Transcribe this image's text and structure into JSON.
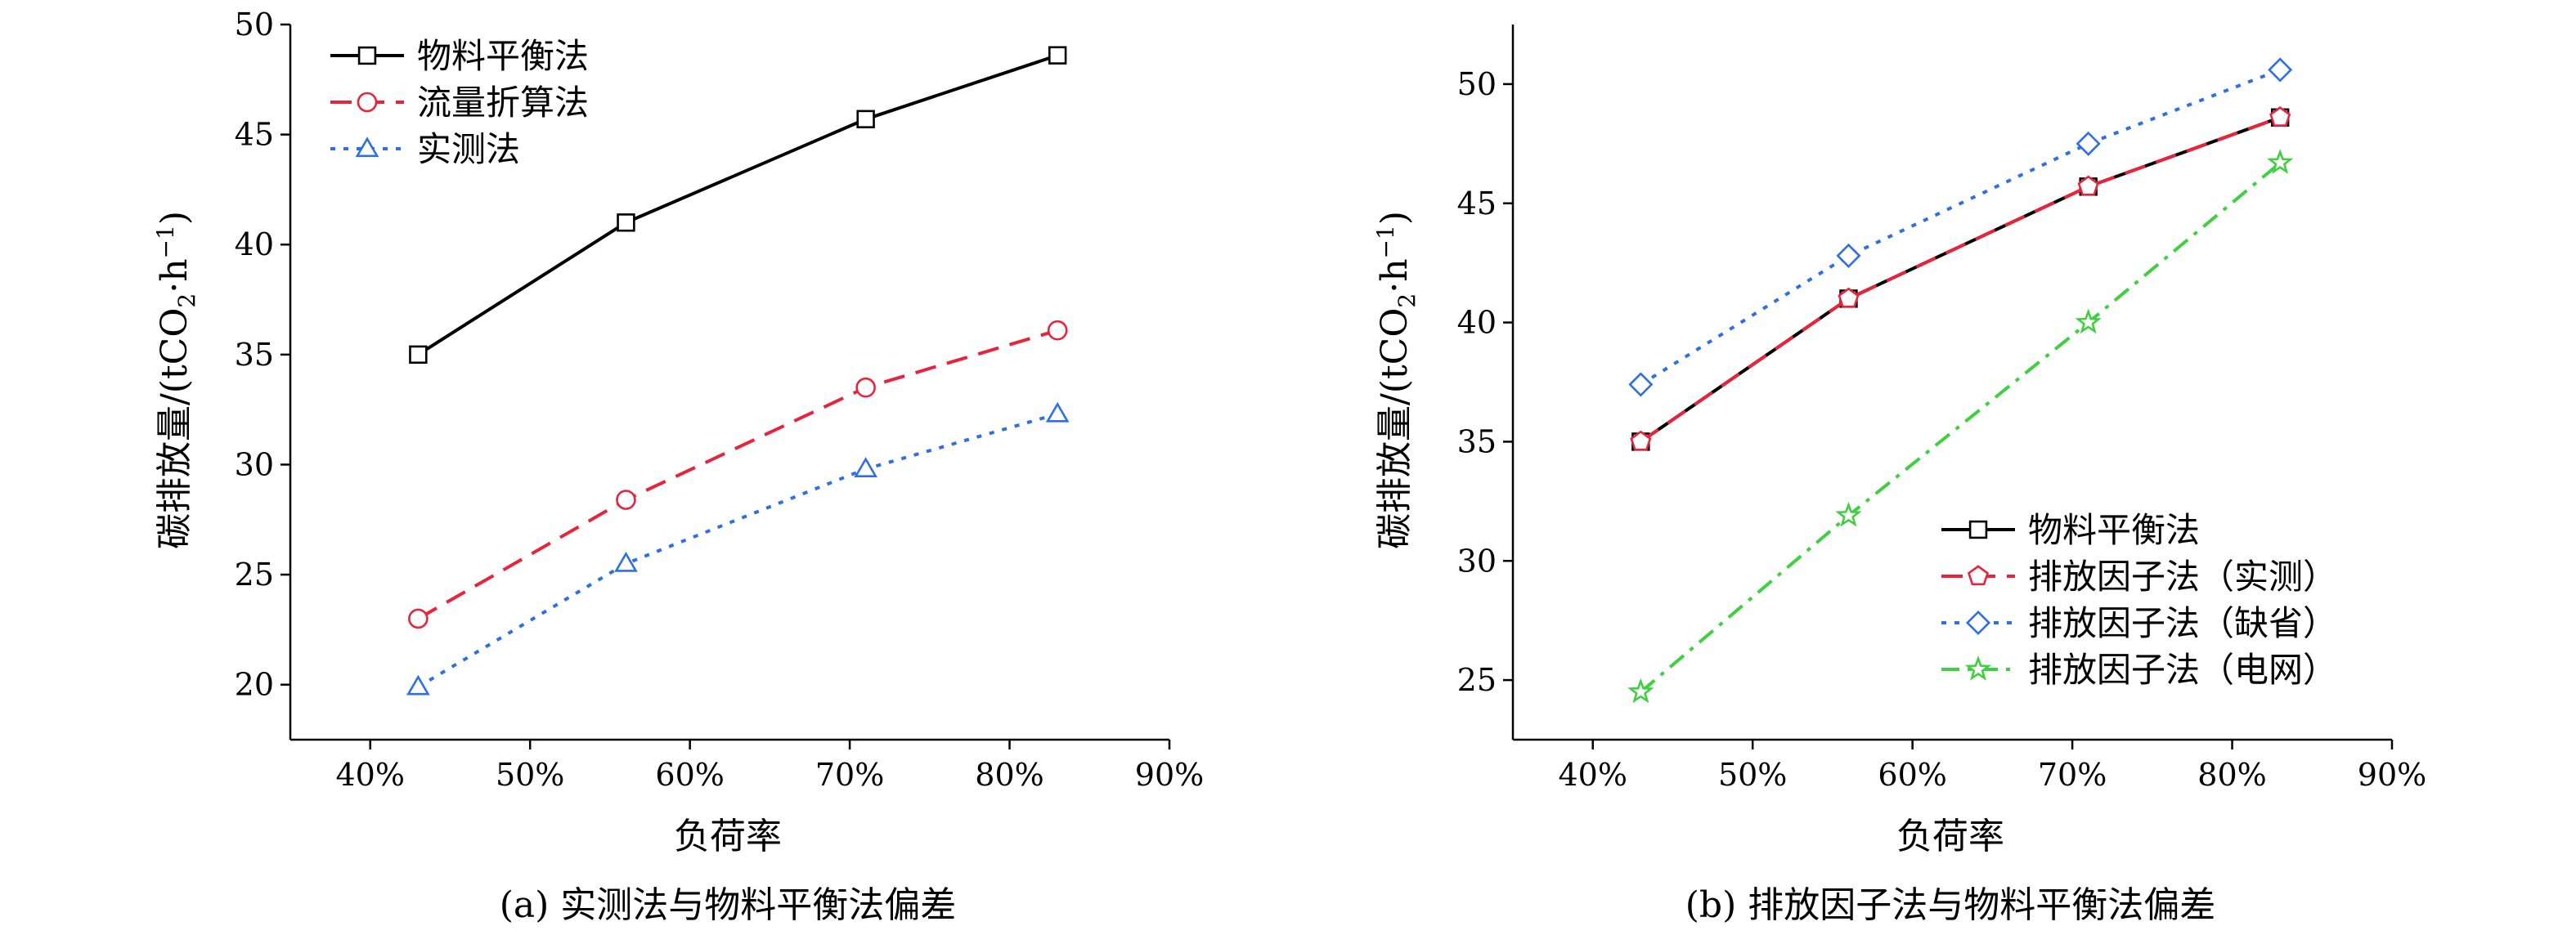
{
  "chart_data": [
    {
      "type": "line",
      "caption": "(a) 实测法与物料平衡法偏差",
      "xlabel": "负荷率",
      "ylabel_main": "碳排放量/(tCO",
      "ylabel_sub": "2",
      "ylabel_dot": "·h",
      "ylabel_sup": "−1",
      "ylabel_close": ")",
      "x_ticks": [
        "40%",
        "50%",
        "60%",
        "70%",
        "80%",
        "90%"
      ],
      "y_ticks": [
        "20",
        "25",
        "30",
        "35",
        "40",
        "45",
        "50"
      ],
      "xlim": [
        35,
        90
      ],
      "ylim": [
        17.5,
        50
      ],
      "legend_position": "top-left",
      "x": [
        43,
        56,
        71,
        83
      ],
      "series": [
        {
          "name": "物料平衡法",
          "values": [
            35.0,
            41.0,
            45.7,
            48.6
          ],
          "color": "#000000",
          "dash": "solid",
          "marker": "square"
        },
        {
          "name": "流量折算法",
          "values": [
            23.0,
            28.4,
            33.5,
            36.1
          ],
          "color": "#e8243c",
          "dash": "dashed",
          "marker": "circle"
        },
        {
          "name": "实测法",
          "values": [
            19.9,
            25.5,
            29.8,
            32.3
          ],
          "color": "#2e6fe6",
          "dash": "dotted",
          "marker": "triangle"
        }
      ]
    },
    {
      "type": "line",
      "caption": "(b) 排放因子法与物料平衡法偏差",
      "xlabel": "负荷率",
      "ylabel_main": "碳排放量/(tCO",
      "ylabel_sub": "2",
      "ylabel_dot": "·h",
      "ylabel_sup": "−1",
      "ylabel_close": ")",
      "x_ticks": [
        "40%",
        "50%",
        "60%",
        "70%",
        "80%",
        "90%"
      ],
      "y_ticks": [
        "25",
        "30",
        "35",
        "40",
        "45",
        "50"
      ],
      "xlim": [
        35,
        90
      ],
      "ylim": [
        22.5,
        52.5
      ],
      "legend_position": "bottom-right",
      "x": [
        43,
        56,
        71,
        83
      ],
      "series": [
        {
          "name": "物料平衡法",
          "values": [
            35.0,
            41.0,
            45.7,
            48.6
          ],
          "color": "#000000",
          "dash": "solid",
          "marker": "square"
        },
        {
          "name": "排放因子法（实测）",
          "values": [
            35.0,
            41.0,
            45.7,
            48.6
          ],
          "color": "#e8243c",
          "dash": "dashed",
          "marker": "pentagon"
        },
        {
          "name": "排放因子法（缺省）",
          "values": [
            37.4,
            42.8,
            47.5,
            50.6
          ],
          "color": "#2e6fe6",
          "dash": "dotted",
          "marker": "diamond"
        },
        {
          "name": "排放因子法（电网）",
          "values": [
            24.5,
            31.9,
            40.0,
            46.7
          ],
          "color": "#3fd03f",
          "dash": "dashdot",
          "marker": "star"
        }
      ]
    }
  ]
}
